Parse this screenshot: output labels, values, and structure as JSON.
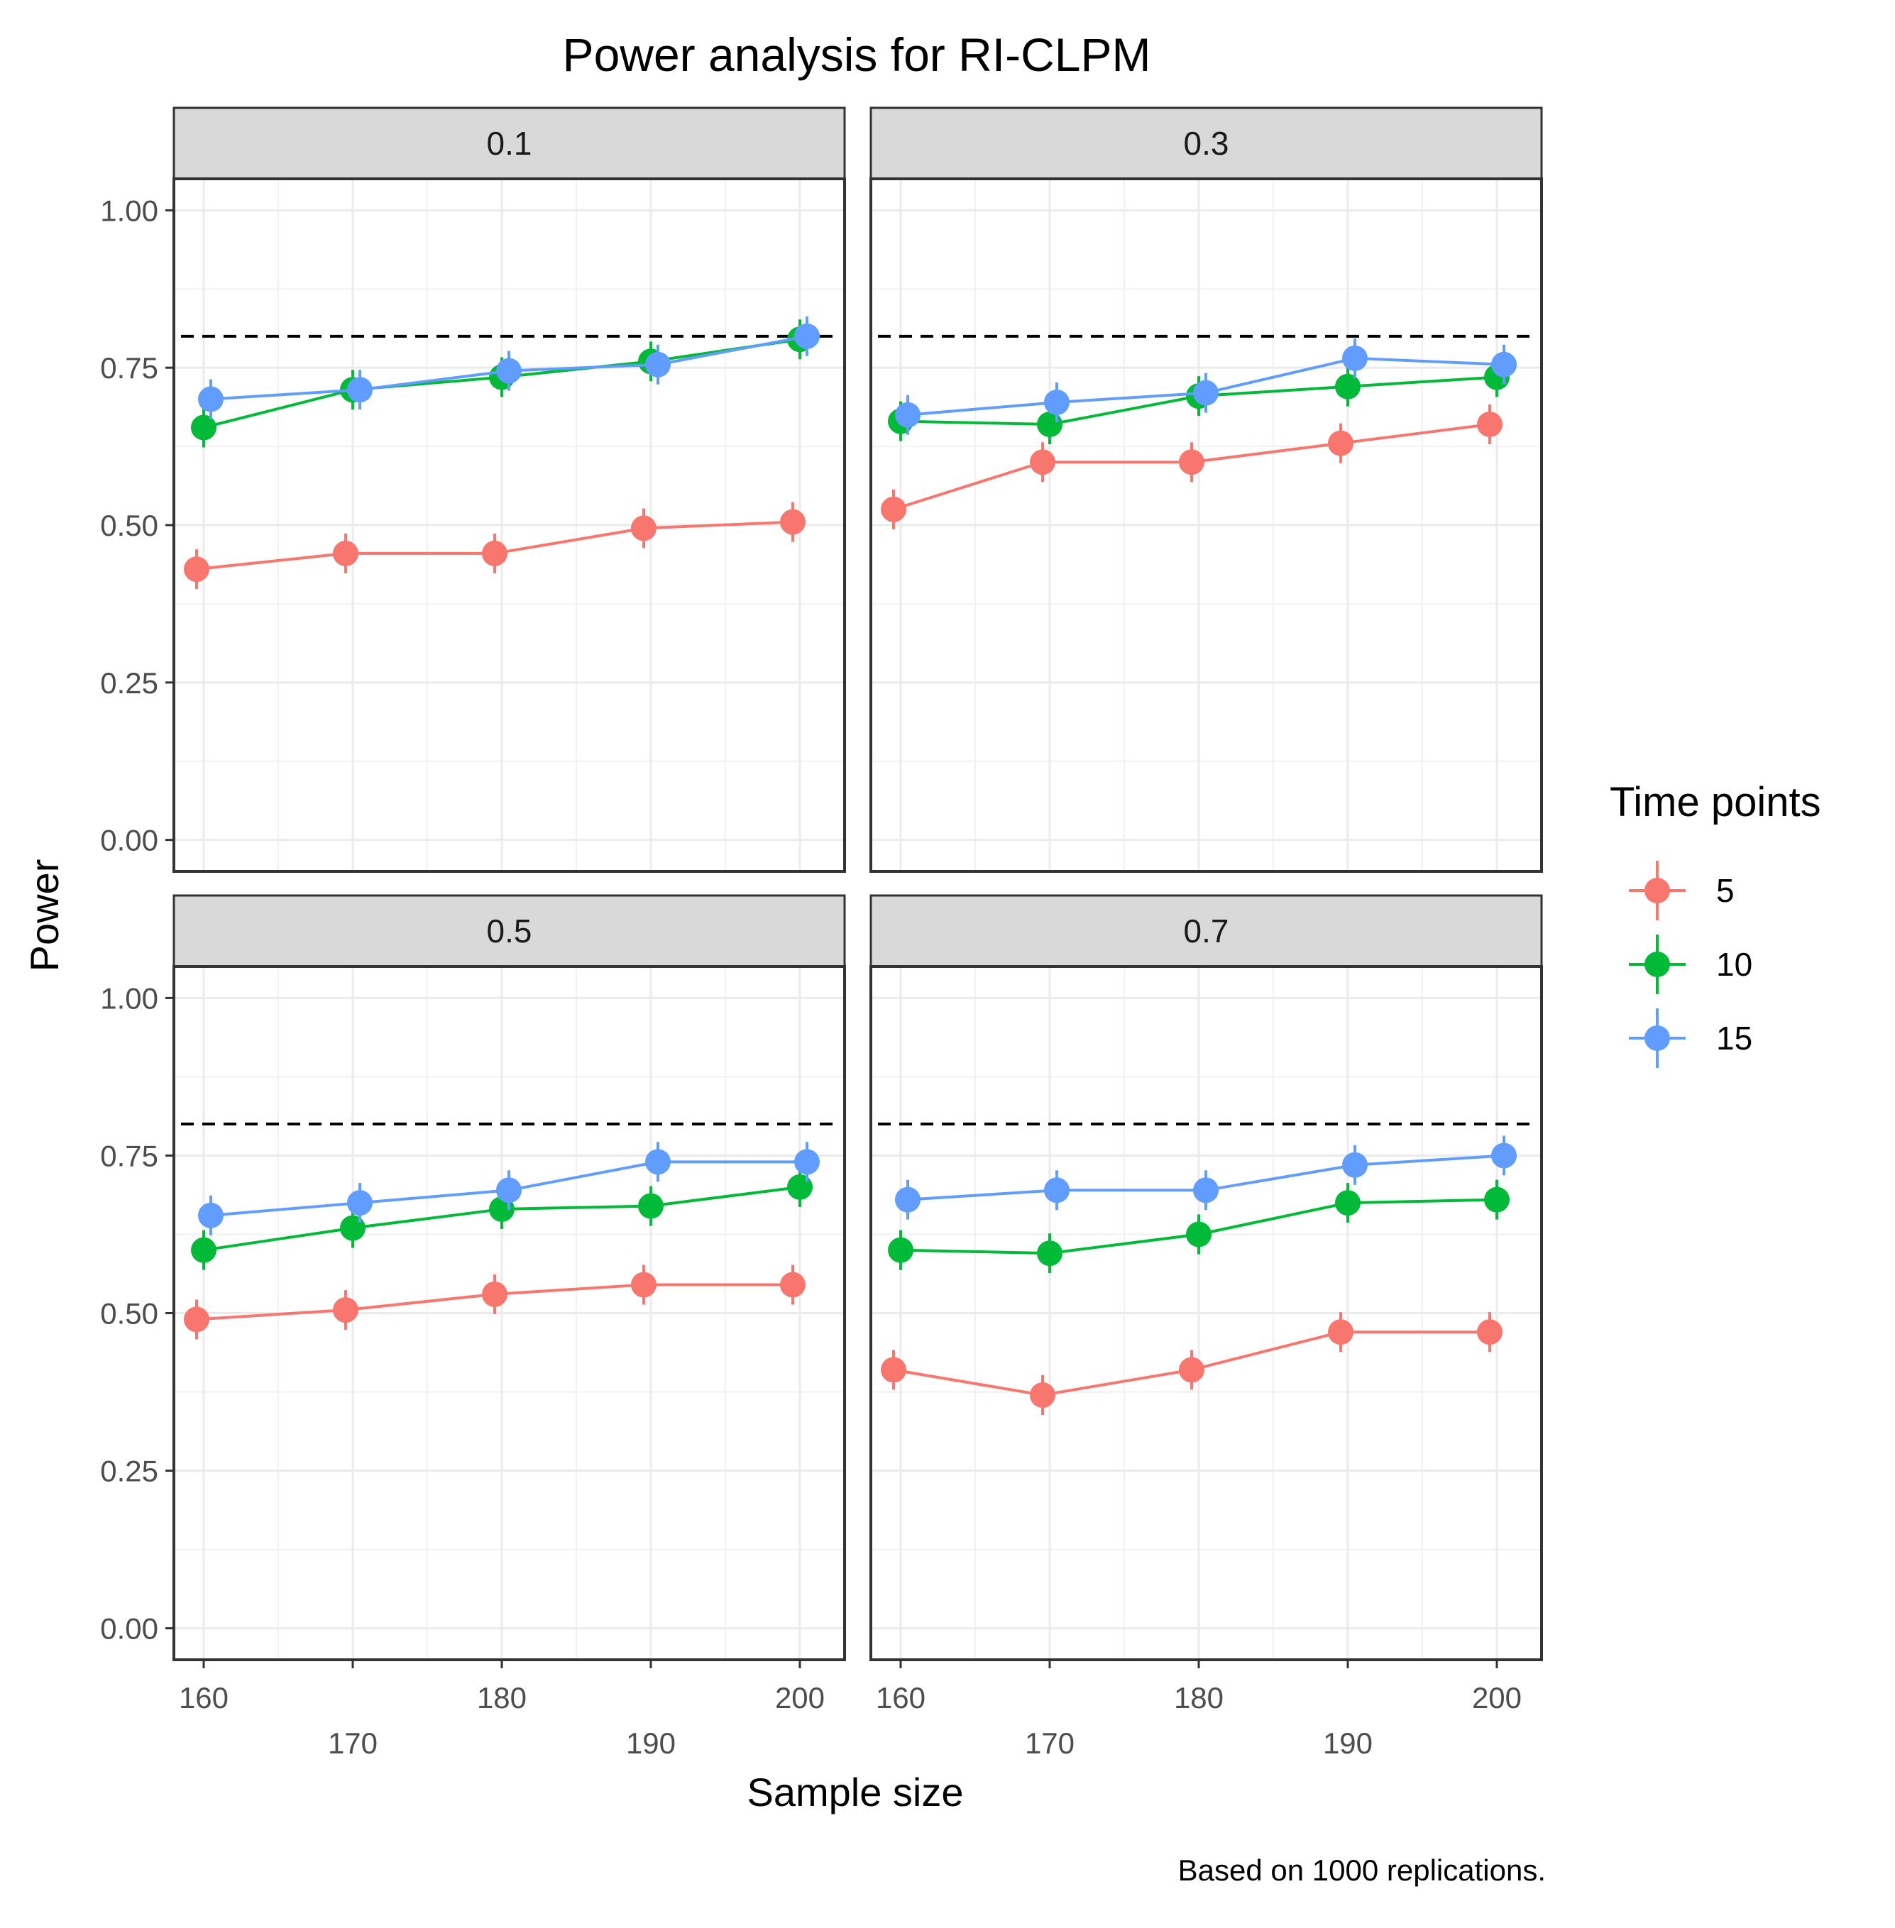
{
  "chart_data": {
    "type": "line",
    "title": "Power analysis for RI-CLPM",
    "xlabel": "Sample size",
    "ylabel": "Power",
    "caption": "Based on 1000 replications.",
    "x_ticks": [
      160,
      170,
      180,
      190,
      200
    ],
    "x_tick_labels": [
      "160",
      "170",
      "180",
      "190",
      "200"
    ],
    "xlim": [
      158,
      203
    ],
    "y_ticks": [
      0,
      0.25,
      0.5,
      0.75,
      1.0
    ],
    "y_tick_labels": [
      "0.00",
      "0.25",
      "0.50",
      "0.75",
      "1.00"
    ],
    "ylim": [
      -0.05,
      1.05
    ],
    "reference_line": 0.8,
    "grid": true,
    "legend": {
      "title": "Time points",
      "position": "right",
      "entries": [
        {
          "label": "5",
          "color": "#F8766D"
        },
        {
          "label": "10",
          "color": "#00BA38"
        },
        {
          "label": "15",
          "color": "#619CFF"
        }
      ]
    },
    "facets": [
      {
        "label": "0.1",
        "series": [
          {
            "name": "5",
            "color": "#F8766D",
            "x": [
              160,
              170,
              180,
              190,
              200
            ],
            "values": [
              0.43,
              0.455,
              0.455,
              0.495,
              0.505
            ]
          },
          {
            "name": "10",
            "color": "#00BA38",
            "x": [
              160,
              170,
              180,
              190,
              200
            ],
            "values": [
              0.655,
              0.715,
              0.735,
              0.76,
              0.795
            ]
          },
          {
            "name": "15",
            "color": "#619CFF",
            "x": [
              160,
              170,
              180,
              190,
              200
            ],
            "values": [
              0.7,
              0.715,
              0.745,
              0.755,
              0.8
            ]
          }
        ]
      },
      {
        "label": "0.3",
        "series": [
          {
            "name": "5",
            "color": "#F8766D",
            "x": [
              160,
              170,
              180,
              190,
              200
            ],
            "values": [
              0.525,
              0.6,
              0.6,
              0.63,
              0.66
            ]
          },
          {
            "name": "10",
            "color": "#00BA38",
            "x": [
              160,
              170,
              180,
              190,
              200
            ],
            "values": [
              0.665,
              0.66,
              0.705,
              0.72,
              0.735
            ]
          },
          {
            "name": "15",
            "color": "#619CFF",
            "x": [
              160,
              170,
              180,
              190,
              200
            ],
            "values": [
              0.675,
              0.695,
              0.71,
              0.765,
              0.755
            ]
          }
        ]
      },
      {
        "label": "0.5",
        "series": [
          {
            "name": "5",
            "color": "#F8766D",
            "x": [
              160,
              170,
              180,
              190,
              200
            ],
            "values": [
              0.49,
              0.505,
              0.53,
              0.545,
              0.545
            ]
          },
          {
            "name": "10",
            "color": "#00BA38",
            "x": [
              160,
              170,
              180,
              190,
              200
            ],
            "values": [
              0.6,
              0.635,
              0.665,
              0.67,
              0.7
            ]
          },
          {
            "name": "15",
            "color": "#619CFF",
            "x": [
              160,
              170,
              180,
              190,
              200
            ],
            "values": [
              0.655,
              0.675,
              0.695,
              0.74,
              0.74
            ]
          }
        ]
      },
      {
        "label": "0.7",
        "series": [
          {
            "name": "5",
            "color": "#F8766D",
            "x": [
              160,
              170,
              180,
              190,
              200
            ],
            "values": [
              0.41,
              0.37,
              0.41,
              0.47,
              0.47
            ]
          },
          {
            "name": "10",
            "color": "#00BA38",
            "x": [
              160,
              170,
              180,
              190,
              200
            ],
            "values": [
              0.6,
              0.595,
              0.625,
              0.675,
              0.68
            ]
          },
          {
            "name": "15",
            "color": "#619CFF",
            "x": [
              160,
              170,
              180,
              190,
              200
            ],
            "values": [
              0.68,
              0.695,
              0.695,
              0.735,
              0.75
            ]
          }
        ]
      }
    ]
  }
}
